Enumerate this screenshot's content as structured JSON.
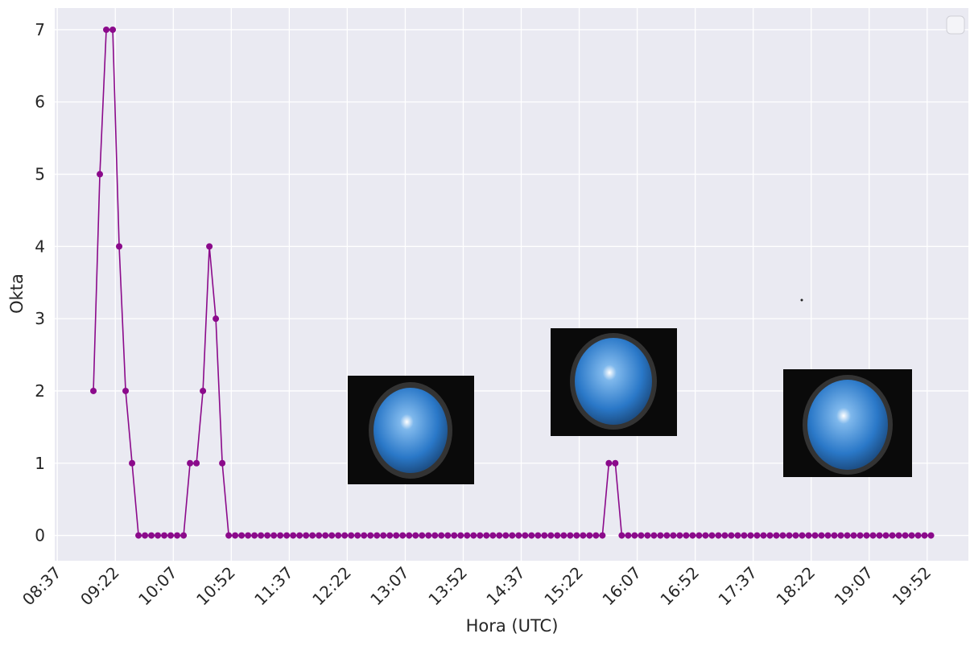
{
  "chart_data": {
    "type": "line",
    "xlabel": "Hora (UTC)",
    "ylabel": "Okta",
    "color": "#8b0a8b",
    "grid": true,
    "x": [
      "09:05",
      "09:10",
      "09:15",
      "09:20",
      "09:25",
      "09:30",
      "09:35",
      "09:40",
      "09:45",
      "09:50",
      "09:55",
      "10:00",
      "10:05",
      "10:10",
      "10:15",
      "10:20",
      "10:25",
      "10:30",
      "10:35",
      "10:40",
      "10:45",
      "10:50",
      "10:55",
      "11:00",
      "11:05",
      "11:10",
      "11:15",
      "11:20",
      "11:25",
      "11:30",
      "11:35",
      "11:40",
      "11:45",
      "11:50",
      "11:55",
      "12:00",
      "12:05",
      "12:10",
      "12:15",
      "12:20",
      "12:25",
      "12:30",
      "12:35",
      "12:40",
      "12:45",
      "12:50",
      "12:55",
      "13:00",
      "13:05",
      "13:10",
      "13:15",
      "13:20",
      "13:25",
      "13:30",
      "13:35",
      "13:40",
      "13:45",
      "13:50",
      "13:55",
      "14:00",
      "14:05",
      "14:10",
      "14:15",
      "14:20",
      "14:25",
      "14:30",
      "14:35",
      "14:40",
      "14:45",
      "14:50",
      "14:55",
      "15:00",
      "15:05",
      "15:10",
      "15:15",
      "15:20",
      "15:25",
      "15:30",
      "15:35",
      "15:40",
      "15:45",
      "15:50",
      "15:55",
      "16:00",
      "16:05",
      "16:10",
      "16:15",
      "16:20",
      "16:25",
      "16:30",
      "16:35",
      "16:40",
      "16:45",
      "16:50",
      "16:55",
      "17:00",
      "17:05",
      "17:10",
      "17:15",
      "17:20",
      "17:25",
      "17:30",
      "17:35",
      "17:40",
      "17:45",
      "17:50",
      "17:55",
      "18:00",
      "18:05",
      "18:10",
      "18:15",
      "18:20",
      "18:25",
      "18:30",
      "18:35",
      "18:40",
      "18:45",
      "18:50",
      "18:55",
      "19:00",
      "19:05",
      "19:10",
      "19:15",
      "19:20",
      "19:25",
      "19:30",
      "19:35",
      "19:40",
      "19:45",
      "19:50",
      "19:55"
    ],
    "values": [
      2,
      5,
      7,
      7,
      4,
      2,
      1,
      0,
      0,
      0,
      0,
      0,
      0,
      0,
      0,
      1,
      1,
      2,
      4,
      3,
      1,
      0,
      0,
      0,
      0,
      0,
      0,
      0,
      0,
      0,
      0,
      0,
      0,
      0,
      0,
      0,
      0,
      0,
      0,
      0,
      0,
      0,
      0,
      0,
      0,
      0,
      0,
      0,
      0,
      0,
      0,
      0,
      0,
      0,
      0,
      0,
      0,
      0,
      0,
      0,
      0,
      0,
      0,
      0,
      0,
      0,
      0,
      0,
      0,
      0,
      0,
      0,
      0,
      0,
      0,
      0,
      0,
      0,
      0,
      0,
      1,
      1,
      0,
      0,
      0,
      0,
      0,
      0,
      0,
      0,
      0,
      0,
      0,
      0,
      0,
      0,
      0,
      0,
      0,
      0,
      0,
      0,
      0,
      0,
      0,
      0,
      0,
      0,
      0,
      0,
      0,
      0,
      0,
      0,
      0,
      0,
      0,
      0,
      0,
      0,
      0,
      0,
      0,
      0,
      0,
      0,
      0,
      0,
      0,
      0,
      0
    ],
    "xlim": [
      "08:35",
      "20:24"
    ],
    "xticks": [
      "08:37",
      "09:22",
      "10:07",
      "10:52",
      "11:37",
      "12:22",
      "13:07",
      "13:52",
      "14:37",
      "15:22",
      "16:07",
      "16:52",
      "17:37",
      "18:22",
      "19:07",
      "19:52"
    ],
    "ylim": [
      -0.35,
      7.3
    ],
    "yticks": [
      0,
      1,
      2,
      3,
      4,
      5,
      6,
      7
    ]
  }
}
